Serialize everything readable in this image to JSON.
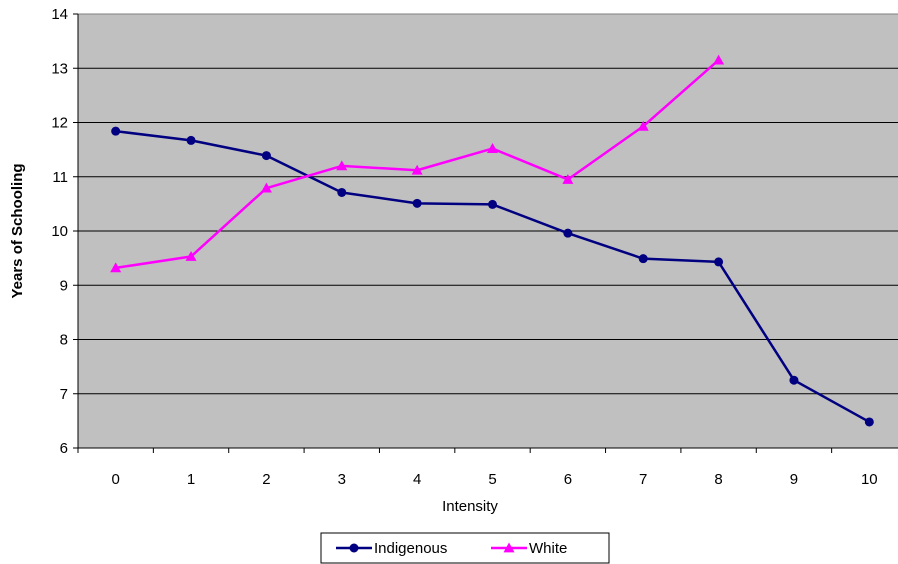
{
  "chart_data": {
    "type": "line",
    "title": "",
    "xlabel": "Intensity",
    "ylabel": "Years of Schooling",
    "categories": [
      "0",
      "1",
      "2",
      "3",
      "4",
      "5",
      "6",
      "7",
      "8",
      "9",
      "10"
    ],
    "x": [
      0,
      1,
      2,
      3,
      4,
      5,
      6,
      7,
      8,
      9,
      10
    ],
    "ylim": [
      6,
      14
    ],
    "yticks": [
      6,
      7,
      8,
      9,
      10,
      11,
      12,
      13,
      14
    ],
    "grid": true,
    "legend_position": "bottom",
    "plot_background": "#c0c0c0",
    "series": [
      {
        "name": "Indigenous",
        "color": "#000080",
        "marker": "circle",
        "values": [
          11.84,
          11.67,
          11.39,
          10.71,
          10.51,
          10.49,
          9.96,
          9.49,
          9.43,
          7.25,
          6.48
        ]
      },
      {
        "name": "White",
        "color": "#ff00ff",
        "marker": "triangle",
        "values": [
          9.32,
          9.53,
          10.79,
          11.2,
          11.12,
          11.52,
          10.95,
          11.93,
          13.15,
          null,
          null
        ]
      }
    ]
  }
}
